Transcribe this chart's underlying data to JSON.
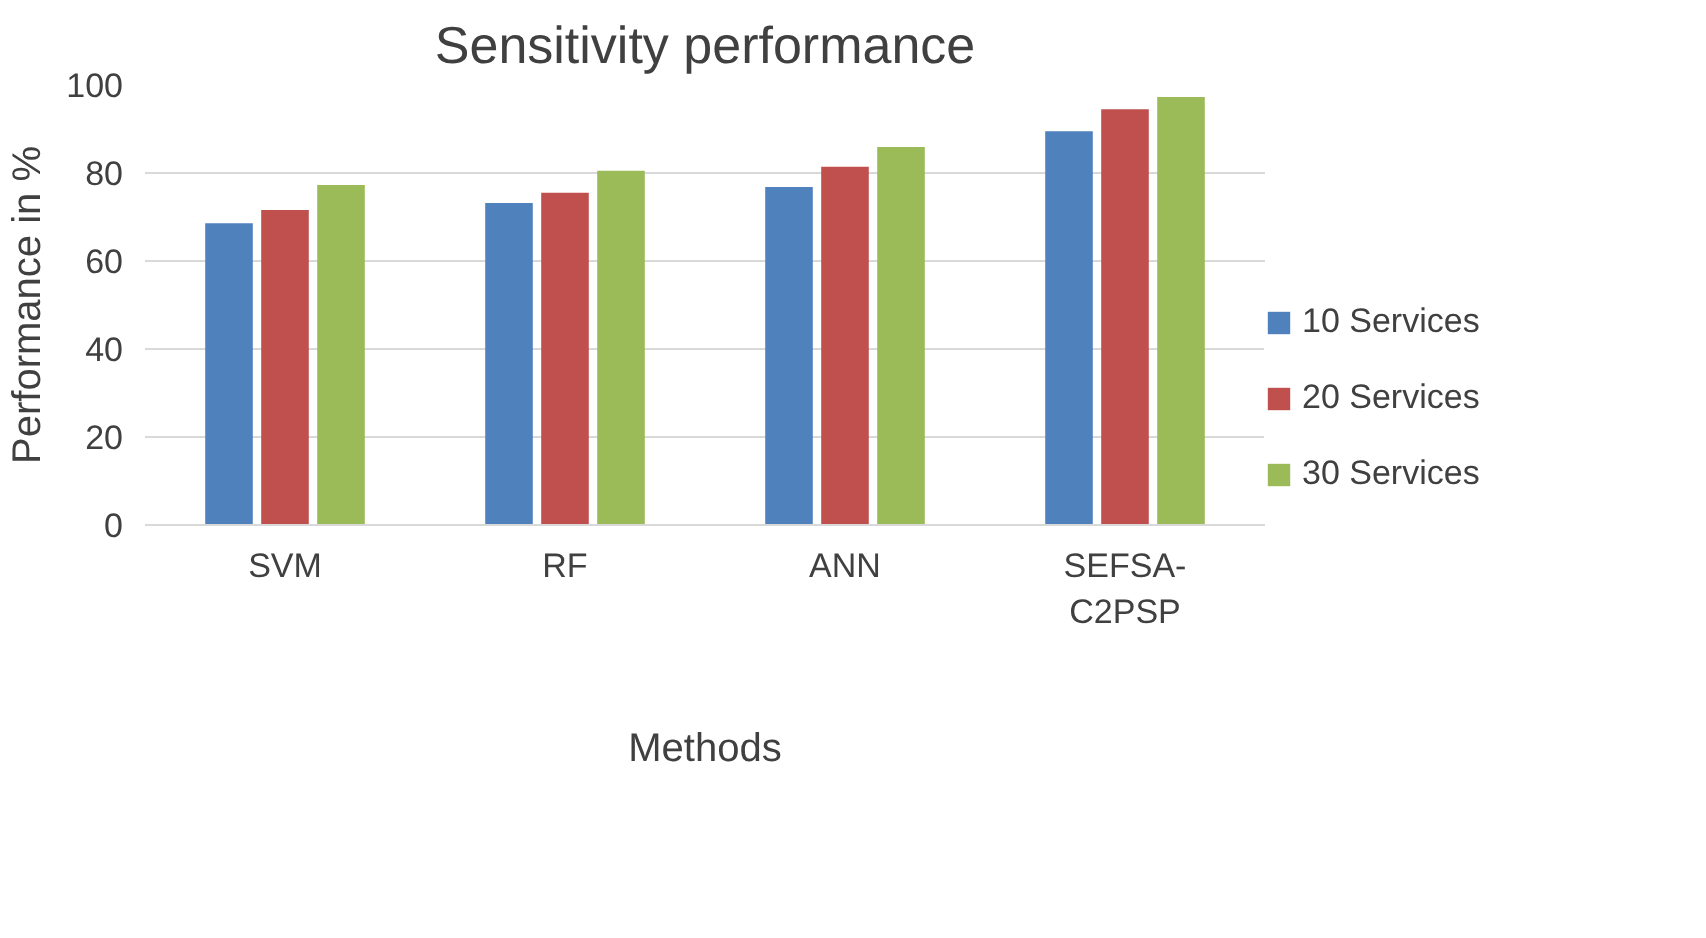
{
  "chart_data": {
    "type": "bar",
    "title": "Sensitivity performance",
    "xlabel": "Methods",
    "ylabel": "Performance in %",
    "categories": [
      "SVM",
      "RF",
      "ANN",
      "SEFSA-C2PSP"
    ],
    "series": [
      {
        "name": "10 Services",
        "color": "#4f81bd",
        "values": [
          68.6,
          73.2,
          76.8,
          89.5
        ]
      },
      {
        "name": "20 Services",
        "color": "#c0504d",
        "values": [
          71.6,
          75.5,
          81.4,
          94.5
        ]
      },
      {
        "name": "30 Services",
        "color": "#9bbb59",
        "values": [
          77.3,
          80.5,
          85.9,
          97.3
        ]
      }
    ],
    "ylim": [
      0,
      100
    ],
    "yticks": [
      0,
      20,
      40,
      60,
      80,
      100
    ],
    "grid": "y",
    "legend": "right"
  }
}
